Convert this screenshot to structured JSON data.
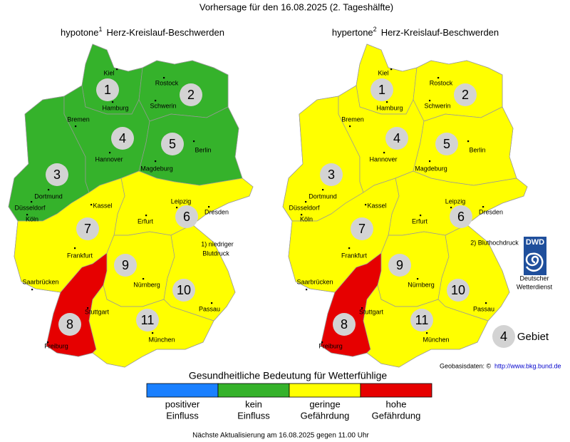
{
  "title": "Vorhersage für den 16.08.2025 (2. Tageshälfte)",
  "cities": [
    "Kiel",
    "Rostock",
    "Hamburg",
    "Schwerin",
    "Bremen",
    "Hannover",
    "Berlin",
    "Magdeburg",
    "Dortmund",
    "Düsseldorf",
    "Köln",
    "Kassel",
    "Leipzig",
    "Dresden",
    "Erfurt",
    "Frankfurt",
    "Saarbrücken",
    "Nürnberg",
    "Stuttgart",
    "Passau",
    "München",
    "Freiburg"
  ],
  "maps": [
    {
      "name": "hypotone",
      "superscript": "1",
      "subtitle": "Herz-Kreislauf-Beschwerden",
      "note": [
        "1) niedriger",
        "Blutdruck"
      ],
      "regions": [
        {
          "label": "1",
          "color": "#35b22b"
        },
        {
          "label": "2",
          "color": "#35b22b"
        },
        {
          "label": "3",
          "color": "#35b22b"
        },
        {
          "label": "4",
          "color": "#35b22b"
        },
        {
          "label": "5",
          "color": "#35b22b"
        },
        {
          "label": "6",
          "color": "#ffff00"
        },
        {
          "label": "7",
          "color": "#ffff00"
        },
        {
          "label": "8",
          "color": "#e60000"
        },
        {
          "label": "9",
          "color": "#ffff00"
        },
        {
          "label": "10",
          "color": "#ffff00"
        },
        {
          "label": "11",
          "color": "#ffff00"
        }
      ]
    },
    {
      "name": "hypertone",
      "superscript": "2",
      "subtitle": "Herz-Kreislauf-Beschwerden",
      "note": [
        "2) Bluthochdruck"
      ],
      "regions": [
        {
          "label": "1",
          "color": "#ffff00"
        },
        {
          "label": "2",
          "color": "#ffff00"
        },
        {
          "label": "3",
          "color": "#ffff00"
        },
        {
          "label": "4",
          "color": "#ffff00"
        },
        {
          "label": "5",
          "color": "#ffff00"
        },
        {
          "label": "6",
          "color": "#ffff00"
        },
        {
          "label": "7",
          "color": "#ffff00"
        },
        {
          "label": "8",
          "color": "#e60000"
        },
        {
          "label": "9",
          "color": "#ffff00"
        },
        {
          "label": "10",
          "color": "#ffff00"
        },
        {
          "label": "11",
          "color": "#ffff00"
        }
      ]
    }
  ],
  "logo": {
    "text": "DWD",
    "caption": [
      "Deutscher",
      "Wetterdienst"
    ]
  },
  "key": {
    "number": "4",
    "label": "Gebiet"
  },
  "source": {
    "text": "Geobasisdaten: ©",
    "link": "http://www.bkg.bund.de"
  },
  "legend": {
    "title": "Gesundheitliche Bedeutung für Wetterfühlige",
    "items": [
      {
        "color": "#1a80ff",
        "label": [
          "positiver",
          "Einfluss"
        ]
      },
      {
        "color": "#35b22b",
        "label": [
          "kein",
          "Einfluss"
        ]
      },
      {
        "color": "#ffff00",
        "label": [
          "geringe",
          "Gefährdung"
        ]
      },
      {
        "color": "#e60000",
        "label": [
          "hohe",
          "Gefährdung"
        ]
      }
    ]
  },
  "footer": "Nächste Aktualisierung am 16.08.2025 gegen 11.00 Uhr"
}
